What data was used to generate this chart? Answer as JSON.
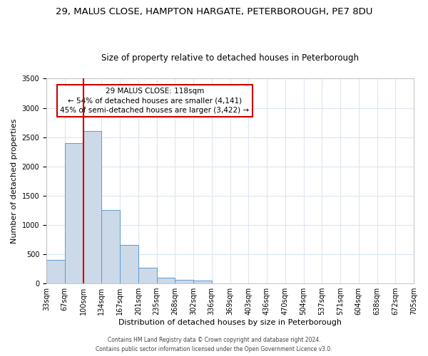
{
  "title": "29, MALUS CLOSE, HAMPTON HARGATE, PETERBOROUGH, PE7 8DU",
  "subtitle": "Size of property relative to detached houses in Peterborough",
  "xlabel": "Distribution of detached houses by size in Peterborough",
  "ylabel": "Number of detached properties",
  "bar_values": [
    400,
    2400,
    2600,
    1250,
    650,
    260,
    100,
    55,
    50,
    0,
    0,
    0,
    0,
    0,
    0,
    0,
    0,
    0,
    0,
    0
  ],
  "bar_labels": [
    "33sqm",
    "67sqm",
    "100sqm",
    "134sqm",
    "167sqm",
    "201sqm",
    "235sqm",
    "268sqm",
    "302sqm",
    "336sqm",
    "369sqm",
    "403sqm",
    "436sqm",
    "470sqm",
    "504sqm",
    "537sqm",
    "571sqm",
    "604sqm",
    "638sqm",
    "672sqm",
    "705sqm"
  ],
  "bar_color": "#ccd9e8",
  "bar_edge_color": "#5b9bd5",
  "vline_x": 2.0,
  "vline_color": "#cc0000",
  "ylim": [
    0,
    3500
  ],
  "yticks": [
    0,
    500,
    1000,
    1500,
    2000,
    2500,
    3000,
    3500
  ],
  "annotation_title": "29 MALUS CLOSE: 118sqm",
  "annotation_line1": "← 54% of detached houses are smaller (4,141)",
  "annotation_line2": "45% of semi-detached houses are larger (3,422) →",
  "annotation_box_color": "#ffffff",
  "annotation_box_edge": "#cc0000",
  "footer1": "Contains HM Land Registry data © Crown copyright and database right 2024.",
  "footer2": "Contains public sector information licensed under the Open Government Licence v3.0.",
  "background_color": "#ffffff",
  "grid_color": "#dce6f0",
  "title_fontsize": 9.5,
  "subtitle_fontsize": 8.5,
  "axis_label_fontsize": 8,
  "tick_fontsize": 7,
  "annotation_fontsize": 7.5
}
